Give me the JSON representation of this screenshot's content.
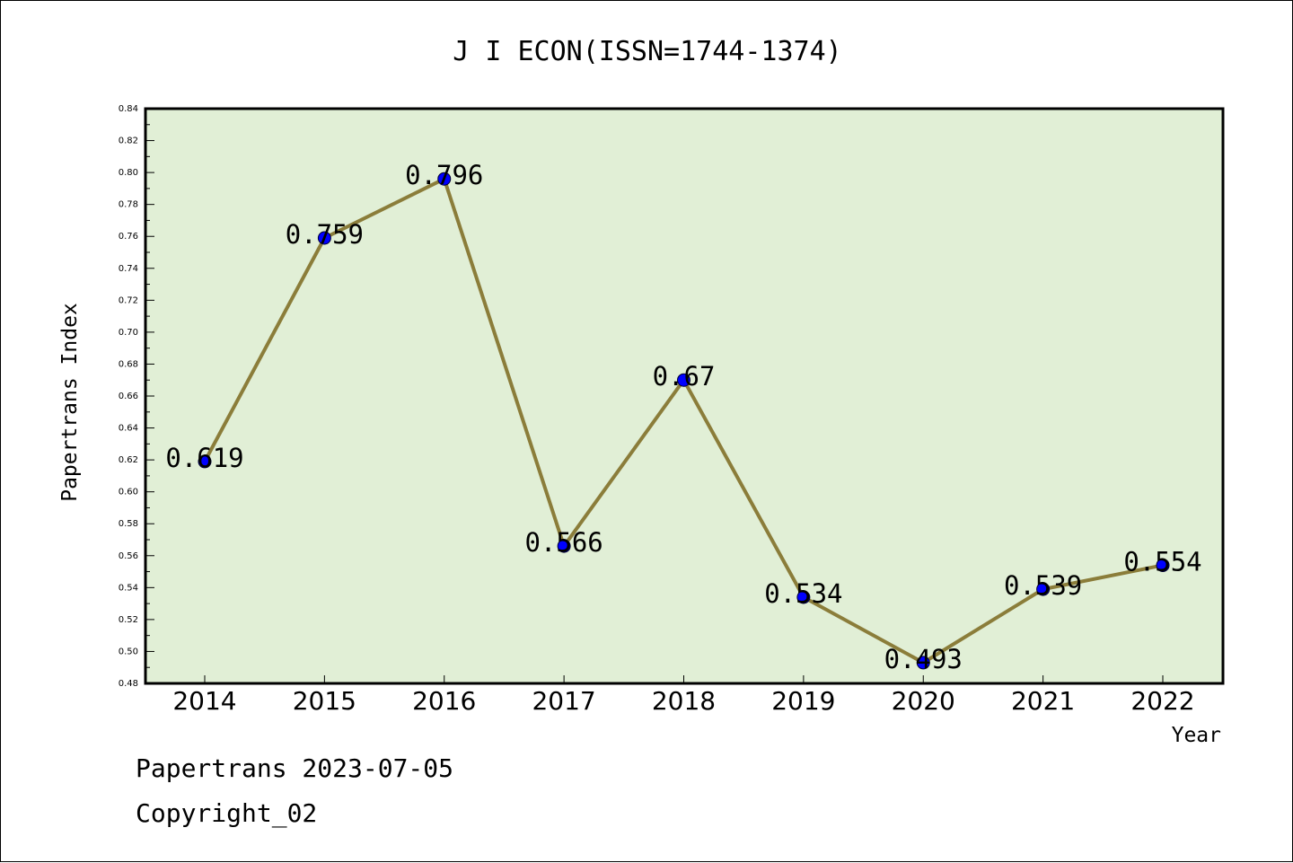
{
  "footer": {
    "line1": "Papertrans 2023-07-05",
    "line2": "Copyright_02"
  },
  "colors": {
    "plot_background": "#e1efd6",
    "line": "#8b7d3a",
    "marker": "#0000ff"
  },
  "chart_data": {
    "type": "line",
    "title": "J I ECON(ISSN=1744-1374)",
    "xlabel": "Year",
    "ylabel": "Papertrans Index",
    "categories": [
      "2014",
      "2015",
      "2016",
      "2017",
      "2018",
      "2019",
      "2020",
      "2021",
      "2022"
    ],
    "series": [
      {
        "values": [
          0.619,
          0.759,
          0.796,
          0.566,
          0.67,
          0.534,
          0.493,
          0.539,
          0.554
        ],
        "labels": [
          "0.619",
          "0.759",
          "0.796",
          "0.566",
          "0.67",
          "0.534",
          "0.493",
          "0.539",
          "0.554"
        ]
      }
    ],
    "ylim": [
      0.48,
      0.84
    ],
    "yticks": [
      "0.48",
      "0.50",
      "0.52",
      "0.54",
      "0.56",
      "0.58",
      "0.60",
      "0.62",
      "0.64",
      "0.66",
      "0.68",
      "0.70",
      "0.72",
      "0.74",
      "0.76",
      "0.78",
      "0.80",
      "0.82",
      "0.84"
    ],
    "grid": false,
    "legend": "none"
  }
}
